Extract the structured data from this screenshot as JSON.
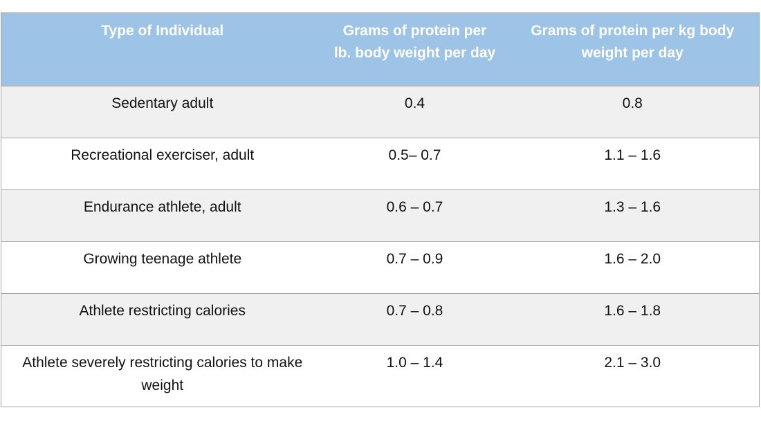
{
  "table": {
    "headers": [
      "Type of Individual",
      "Grams of protein per lb. body weight per day",
      "Grams of protein per kg body weight per day"
    ],
    "rows": [
      [
        "Sedentary adult",
        "0.4",
        "0.8"
      ],
      [
        "Recreational exerciser, adult",
        "0.5– 0.7",
        "1.1 – 1.6"
      ],
      [
        "Endurance athlete, adult",
        "0.6 – 0.7",
        "1.3 – 1.6"
      ],
      [
        "Growing teenage athlete",
        "0.7 – 0.9",
        "1.6 – 2.0"
      ],
      [
        "Athlete restricting calories",
        "0.7 – 0.8",
        "1.6 – 1.8"
      ],
      [
        "Athlete severely restricting calories to make weight",
        "1.0 – 1.4",
        "2.1 – 3.0"
      ]
    ]
  },
  "colors": {
    "header_background": "#9dc3e6",
    "header_text": "#ffffff",
    "shaded_row": "#f0f0f0",
    "border": "#a6a6a6"
  }
}
